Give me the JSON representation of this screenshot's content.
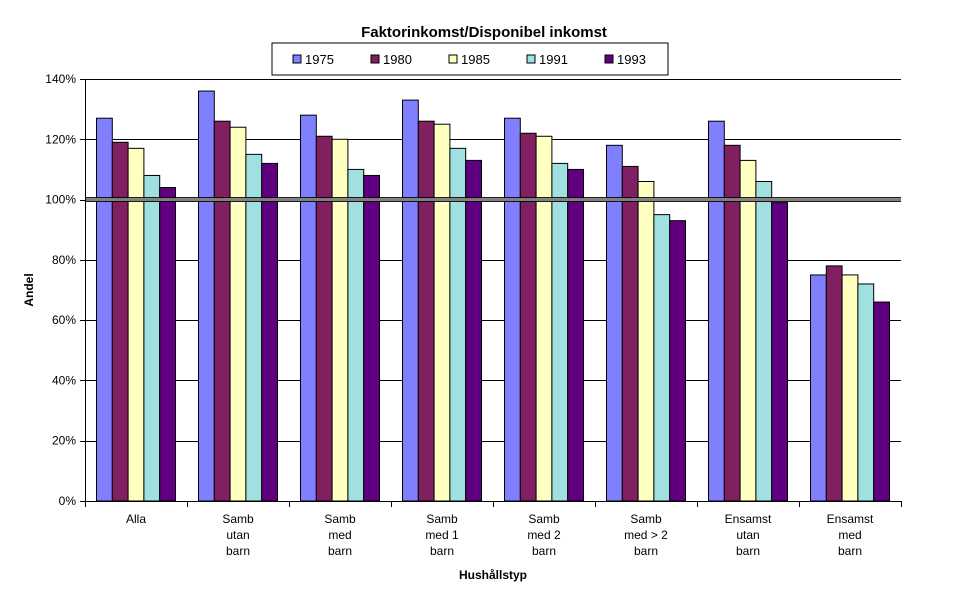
{
  "chart_data": {
    "type": "bar",
    "title": "Faktorinkomst/Disponibel inkomst",
    "xlabel": "Hushållstyp",
    "ylabel": "Andel",
    "ylim": [
      0,
      140
    ],
    "y_ticks": [
      "0%",
      "20%",
      "40%",
      "60%",
      "80%",
      "100%",
      "120%",
      "140%"
    ],
    "y_tick_values": [
      0,
      20,
      40,
      60,
      80,
      100,
      120,
      140
    ],
    "reference_line": 100,
    "grid": true,
    "legend_position": "top",
    "categories": [
      [
        "Alla"
      ],
      [
        "Samb",
        "utan",
        "barn"
      ],
      [
        "Samb",
        "med",
        "barn"
      ],
      [
        "Samb",
        "med 1",
        "barn"
      ],
      [
        "Samb",
        "med  2",
        "barn"
      ],
      [
        "Samb",
        "med > 2",
        "barn"
      ],
      [
        "Ensamst",
        "utan",
        "barn"
      ],
      [
        "Ensamst",
        "med",
        "barn"
      ]
    ],
    "series": [
      {
        "name": "1975",
        "color": "#8080ff",
        "values": [
          127,
          136,
          128,
          133,
          127,
          118,
          126,
          75
        ]
      },
      {
        "name": "1980",
        "color": "#802060",
        "values": [
          119,
          126,
          121,
          126,
          122,
          111,
          118,
          78
        ]
      },
      {
        "name": "1985",
        "color": "#ffffc0",
        "values": [
          117,
          124,
          120,
          125,
          121,
          106,
          113,
          75
        ]
      },
      {
        "name": "1991",
        "color": "#a0e0e0",
        "values": [
          108,
          115,
          110,
          117,
          112,
          95,
          106,
          72
        ]
      },
      {
        "name": "1993",
        "color": "#600080",
        "values": [
          104,
          112,
          108,
          113,
          110,
          93,
          99,
          66
        ]
      }
    ]
  }
}
